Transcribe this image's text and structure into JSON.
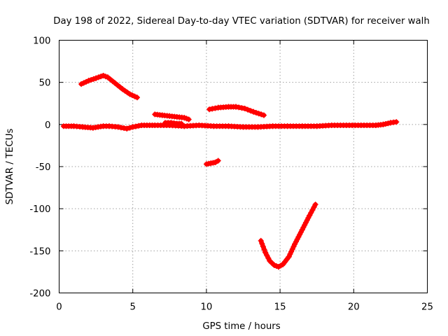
{
  "chart_data": {
    "type": "scatter",
    "title": "Day 198 of 2022, Sidereal Day-to-day VTEC variation (SDTVAR) for receiver walh",
    "xlabel": "GPS time / hours",
    "ylabel": "SDTVAR / TECUs",
    "xlim": [
      0,
      25
    ],
    "ylim": [
      -200,
      100
    ],
    "x_ticks": [
      0,
      5,
      10,
      15,
      20,
      25
    ],
    "x_tick_labels": [
      "0",
      "5",
      "10",
      "15",
      "20",
      "25"
    ],
    "y_ticks": [
      -200,
      -150,
      -100,
      -50,
      0,
      50,
      100
    ],
    "y_tick_labels": [
      "-200",
      "-150",
      "-100",
      "-50",
      "0",
      "50",
      "100"
    ],
    "grid": true,
    "marker_color": "#ff0000",
    "series": [
      {
        "name": "main-band",
        "x": [
          0.3,
          1.0,
          1.6,
          2.3,
          3.0,
          3.4,
          4.0,
          4.6,
          5.0,
          5.6,
          6.5,
          7.5,
          8.5,
          9.5,
          10.5,
          11.5,
          12.5,
          13.5,
          14.5,
          15.5,
          16.5,
          17.5,
          18.5,
          19.5,
          20.5,
          21.5,
          22.0,
          22.5,
          22.9
        ],
        "y": [
          -2,
          -2,
          -3,
          -4,
          -2,
          -2,
          -3,
          -5,
          -3,
          -1,
          -1,
          -1,
          -2,
          -1,
          -2,
          -2,
          -3,
          -3,
          -2,
          -2,
          -2,
          -2,
          -1,
          -1,
          -1,
          -1,
          0,
          2,
          3
        ]
      },
      {
        "name": "arc-early",
        "x": [
          1.5,
          2.0,
          2.5,
          3.0,
          3.3,
          3.8,
          4.3,
          4.8,
          5.3
        ],
        "y": [
          48,
          52,
          55,
          58,
          56,
          49,
          42,
          36,
          32
        ]
      },
      {
        "name": "segment-7h",
        "x": [
          6.5,
          7.0,
          7.5,
          8.0,
          8.5,
          8.8
        ],
        "y": [
          12,
          11,
          10,
          9,
          8,
          6
        ]
      },
      {
        "name": "segment-7h-low",
        "x": [
          7.2,
          7.6,
          8.0,
          8.3
        ],
        "y": [
          2,
          2,
          1,
          1
        ]
      },
      {
        "name": "arc-midday",
        "x": [
          10.2,
          10.8,
          11.5,
          12.0,
          12.6,
          13.2,
          13.9
        ],
        "y": [
          18,
          20,
          21,
          21,
          19,
          15,
          11
        ]
      },
      {
        "name": "segment-10h",
        "x": [
          10.0,
          10.3,
          10.6,
          10.8
        ],
        "y": [
          -47,
          -46,
          -45,
          -43
        ]
      },
      {
        "name": "dip-15h",
        "x": [
          13.7,
          14.0,
          14.3,
          14.6,
          14.9,
          15.2,
          15.6,
          16.0,
          16.5,
          17.0,
          17.4
        ],
        "y": [
          -138,
          -152,
          -162,
          -167,
          -169,
          -166,
          -157,
          -142,
          -125,
          -108,
          -95
        ]
      }
    ]
  }
}
